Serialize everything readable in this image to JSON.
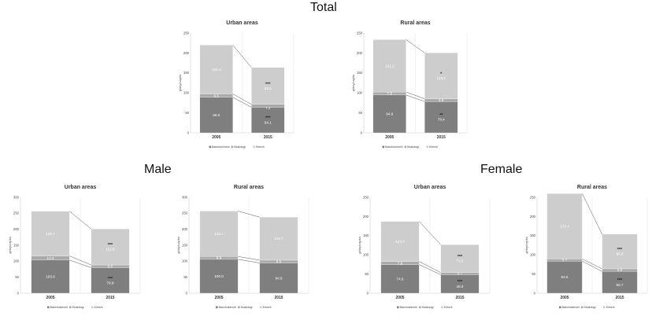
{
  "sections": {
    "total": "Total",
    "male": "Male",
    "female": "Female"
  },
  "colors": {
    "Baechukimchi": "#7f7f7f",
    "Kkakdugi": "#a9a9a9",
    "Kimchi": "#cdcdcd",
    "axis": "#cccccc",
    "connector": "#555555"
  },
  "chart_data": [
    {
      "id": "total-urban",
      "group": "Total",
      "type": "bar",
      "title": "Urban areas",
      "ylabel": "g/day/capita",
      "ylim": [
        0,
        250
      ],
      "yticks": [
        "0",
        "50",
        "100",
        "150",
        "200",
        "250"
      ],
      "categories": [
        "2005",
        "2015"
      ],
      "series": [
        {
          "name": "Baechukimchi",
          "values": [
            88.9,
            64.1
          ],
          "labels": [
            "88.9",
            "64.1"
          ],
          "sig": [
            "",
            "***"
          ]
        },
        {
          "name": "Kkakdugi",
          "values": [
            8.5,
            7.2
          ],
          "labels": [
            "8.5",
            "7.2"
          ],
          "sig": [
            "",
            "*"
          ]
        },
        {
          "name": "Kimchi",
          "values": [
            122.3,
            92.6
          ],
          "labels": [
            "122.3",
            "92.6"
          ],
          "sig": [
            "",
            "***"
          ]
        }
      ]
    },
    {
      "id": "total-rural",
      "group": "Total",
      "type": "bar",
      "title": "Rural areas",
      "ylabel": "g/day/capita",
      "ylim": [
        0,
        250
      ],
      "yticks": [
        "0",
        "50",
        "100",
        "150",
        "200",
        "250"
      ],
      "categories": [
        "2005",
        "2015"
      ],
      "series": [
        {
          "name": "Baechukimchi",
          "values": [
            94.9,
            78.4
          ],
          "labels": [
            "94.9",
            "78.4"
          ],
          "sig": [
            "",
            "**"
          ]
        },
        {
          "name": "Kkakdugi",
          "values": [
            7.3,
            6.9
          ],
          "labels": [
            "7.3",
            "6.9"
          ],
          "sig": [
            "",
            ""
          ]
        },
        {
          "name": "Kimchi",
          "values": [
            131.2,
            115.2
          ],
          "labels": [
            "131.2",
            "115.2"
          ],
          "sig": [
            "",
            "*"
          ]
        }
      ]
    },
    {
      "id": "male-urban",
      "group": "Male",
      "type": "bar",
      "title": "Urban areas",
      "ylabel": "g/day/capita",
      "ylim": [
        0,
        300
      ],
      "yticks": [
        "0",
        "50",
        "100",
        "150",
        "200",
        "250",
        "300"
      ],
      "categories": [
        "2005",
        "2015"
      ],
      "series": [
        {
          "name": "Baechukimchi",
          "values": [
            103.6,
            79.9
          ],
          "labels": [
            "103.6",
            "79.9"
          ],
          "sig": [
            "",
            "***"
          ]
        },
        {
          "name": "Kkakdugi",
          "values": [
            13.0,
            8.5
          ],
          "labels": [
            "13.0",
            "8.5"
          ],
          "sig": [
            "",
            ""
          ]
        },
        {
          "name": "Kimchi",
          "values": [
            139.7,
            112.8
          ],
          "labels": [
            "139.7",
            "112.8"
          ],
          "sig": [
            "",
            "***"
          ]
        }
      ]
    },
    {
      "id": "male-rural",
      "group": "Male",
      "type": "bar",
      "title": "Rural areas",
      "ylabel": "g/day/capita",
      "ylim": [
        0,
        300
      ],
      "yticks": [
        "0",
        "50",
        "100",
        "150",
        "200",
        "250",
        "300"
      ],
      "categories": [
        "2005",
        "2015"
      ],
      "series": [
        {
          "name": "Baechukimchi",
          "values": [
            106.0,
            94.6
          ],
          "labels": [
            "106.0",
            "94.6"
          ],
          "sig": [
            "",
            ""
          ]
        },
        {
          "name": "Kkakdugi",
          "values": [
            8.9,
            8.8
          ],
          "labels": [
            "8.9",
            "8.8"
          ],
          "sig": [
            "",
            ""
          ]
        },
        {
          "name": "Kimchi",
          "values": [
            142.1,
            134.7
          ],
          "labels": [
            "142.1",
            "134.7"
          ],
          "sig": [
            "",
            ""
          ]
        }
      ]
    },
    {
      "id": "female-urban",
      "group": "Female",
      "type": "bar",
      "title": "Urban areas",
      "ylabel": "g/day/capita",
      "ylim": [
        0,
        250
      ],
      "yticks": [
        "0",
        "50",
        "100",
        "150",
        "200",
        "250"
      ],
      "categories": [
        "2005",
        "2015"
      ],
      "series": [
        {
          "name": "Baechukimchi",
          "values": [
            74.6,
            48.3
          ],
          "labels": [
            "74.6",
            "48.3"
          ],
          "sig": [
            "",
            "***"
          ]
        },
        {
          "name": "Kkakdugi",
          "values": [
            7.8,
            5.7
          ],
          "labels": [
            "7.8",
            "5.7"
          ],
          "sig": [
            "",
            ""
          ]
        },
        {
          "name": "Kimchi",
          "values": [
            104.7,
            72.5
          ],
          "labels": [
            "104.7",
            "72.5"
          ],
          "sig": [
            "",
            "***"
          ]
        }
      ]
    },
    {
      "id": "female-rural",
      "group": "Female",
      "type": "bar",
      "title": "Rural areas",
      "ylabel": "g/day/capita",
      "ylim": [
        0,
        250
      ],
      "yticks": [
        "0",
        "50",
        "100",
        "150",
        "200",
        "250"
      ],
      "categories": [
        "2005",
        "2015"
      ],
      "series": [
        {
          "name": "Baechukimchi",
          "values": [
            83.6,
            56.7
          ],
          "labels": [
            "83.6",
            "56.7"
          ],
          "sig": [
            "",
            "***"
          ]
        },
        {
          "name": "Kkakdugi",
          "values": [
            5.7,
            6.9
          ],
          "labels": [
            "5.7",
            "6.9"
          ],
          "sig": [
            "",
            ""
          ]
        },
        {
          "name": "Kimchi",
          "values": [
            170.4,
            90.3
          ],
          "labels": [
            "170.4",
            "90.3"
          ],
          "sig": [
            "",
            "***"
          ]
        }
      ]
    }
  ]
}
